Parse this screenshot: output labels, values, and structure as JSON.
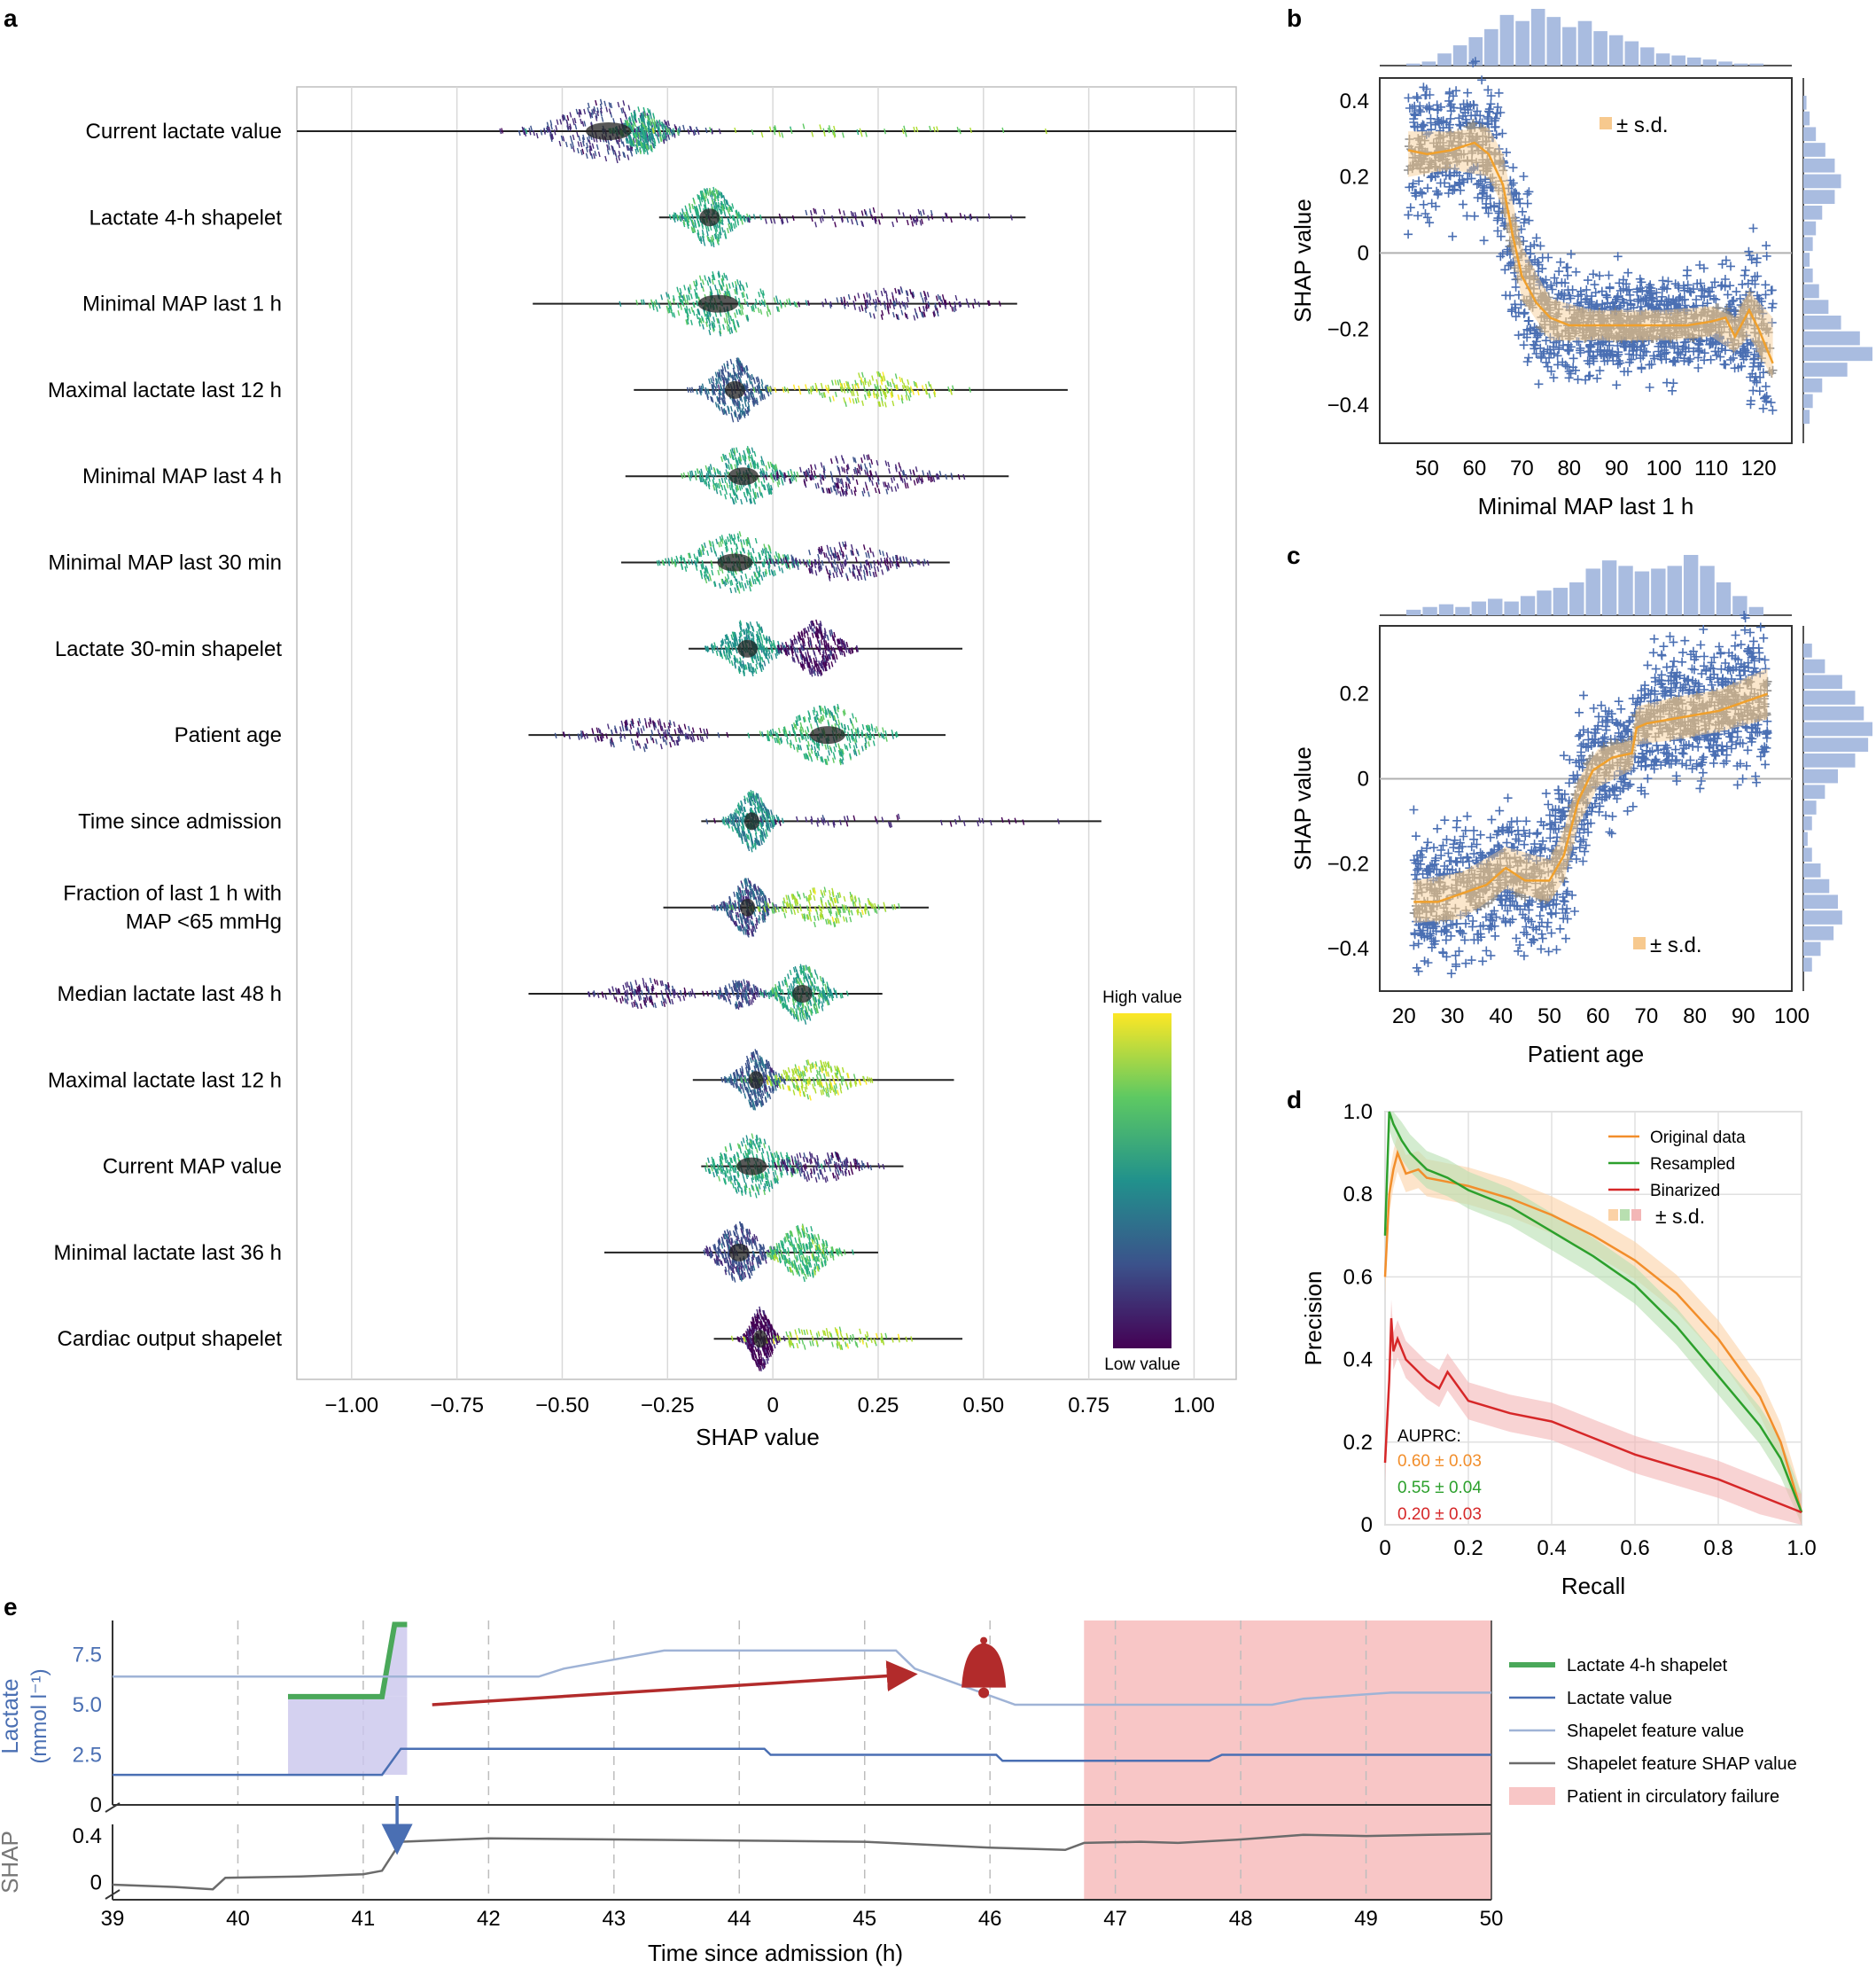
{
  "chart_data": [
    {
      "panel": "a",
      "type": "beeswarm",
      "title": "",
      "xlabel": "SHAP value",
      "ylabel": "",
      "xlim": [
        -1.13,
        1.1
      ],
      "xticks": [
        -1.0,
        -0.75,
        -0.5,
        -0.25,
        0,
        0.25,
        0.5,
        0.75,
        1.0
      ],
      "xtick_labels": [
        "−1.00",
        "−0.75",
        "−0.50",
        "−0.25",
        "0",
        "0.25",
        "0.50",
        "0.75",
        "1.00"
      ],
      "features": [
        {
          "name": "Current lactate value",
          "range": [
            -1.13,
            1.1
          ],
          "clusters": [
            {
              "c": -0.39,
              "w": 0.09,
              "h": 0.9,
              "col": 0.18
            },
            {
              "c": -0.31,
              "w": 0.03,
              "h": 0.7,
              "col": 0.6
            },
            {
              "c": 0.1,
              "w": 0.25,
              "h": 0.15,
              "col": 0.8
            }
          ]
        },
        {
          "name": "Lactate 4-h shapelet",
          "range": [
            -0.27,
            0.6
          ],
          "clusters": [
            {
              "c": -0.15,
              "w": 0.04,
              "h": 0.85,
              "col": 0.6
            },
            {
              "c": 0.2,
              "w": 0.18,
              "h": 0.25,
              "col": 0.1
            }
          ]
        },
        {
          "name": "Minimal MAP last 1 h",
          "range": [
            -0.57,
            0.58
          ],
          "clusters": [
            {
              "c": -0.13,
              "w": 0.08,
              "h": 0.9,
              "col": 0.65
            },
            {
              "c": 0.3,
              "w": 0.1,
              "h": 0.45,
              "col": 0.12
            }
          ]
        },
        {
          "name": "Maximal lactate last 12 h",
          "range": [
            -0.33,
            0.7
          ],
          "clusters": [
            {
              "c": -0.09,
              "w": 0.04,
              "h": 0.9,
              "col": 0.3
            },
            {
              "c": 0.23,
              "w": 0.1,
              "h": 0.5,
              "col": 0.85
            }
          ]
        },
        {
          "name": "Minimal MAP last 4 h",
          "range": [
            -0.35,
            0.56
          ],
          "clusters": [
            {
              "c": -0.07,
              "w": 0.06,
              "h": 0.85,
              "col": 0.6
            },
            {
              "c": 0.2,
              "w": 0.1,
              "h": 0.6,
              "col": 0.12
            }
          ]
        },
        {
          "name": "Minimal MAP last 30 min",
          "range": [
            -0.36,
            0.42
          ],
          "clusters": [
            {
              "c": -0.09,
              "w": 0.07,
              "h": 0.9,
              "col": 0.6
            },
            {
              "c": 0.17,
              "w": 0.08,
              "h": 0.55,
              "col": 0.12
            }
          ]
        },
        {
          "name": "Lactate 30-min shapelet",
          "range": [
            -0.2,
            0.45
          ],
          "clusters": [
            {
              "c": -0.06,
              "w": 0.04,
              "h": 0.85,
              "col": 0.55
            },
            {
              "c": 0.1,
              "w": 0.04,
              "h": 0.8,
              "col": 0.08
            }
          ]
        },
        {
          "name": "Patient age",
          "range": [
            -0.58,
            0.41
          ],
          "clusters": [
            {
              "c": -0.3,
              "w": 0.09,
              "h": 0.45,
              "col": 0.12
            },
            {
              "c": 0.13,
              "w": 0.07,
              "h": 0.9,
              "col": 0.65
            }
          ]
        },
        {
          "name": "Time since admission",
          "range": [
            -0.17,
            0.78
          ],
          "clusters": [
            {
              "c": -0.05,
              "w": 0.03,
              "h": 0.85,
              "col": 0.5
            },
            {
              "c": 0.25,
              "w": 0.2,
              "h": 0.15,
              "col": 0.1
            }
          ]
        },
        {
          "name": "Fraction of last 1 h with MAP <65 mmHg",
          "name_lines": [
            "Fraction of last 1 h with",
            "MAP <65 mmHg"
          ],
          "range": [
            -0.26,
            0.37
          ],
          "clusters": [
            {
              "c": -0.06,
              "w": 0.03,
              "h": 0.85,
              "col": 0.25
            },
            {
              "c": 0.12,
              "w": 0.08,
              "h": 0.55,
              "col": 0.82
            }
          ]
        },
        {
          "name": "Median lactate last 48 h",
          "range": [
            -0.58,
            0.26
          ],
          "clusters": [
            {
              "c": -0.3,
              "w": 0.06,
              "h": 0.4,
              "col": 0.12
            },
            {
              "c": -0.08,
              "w": 0.03,
              "h": 0.4,
              "col": 0.2
            },
            {
              "c": 0.07,
              "w": 0.04,
              "h": 0.85,
              "col": 0.6
            }
          ]
        },
        {
          "name": "Maximal lactate last 12 h",
          "name_dup": true,
          "range": [
            -0.19,
            0.43
          ],
          "clusters": [
            {
              "c": -0.04,
              "w": 0.03,
              "h": 0.85,
              "col": 0.3
            },
            {
              "c": 0.1,
              "w": 0.06,
              "h": 0.55,
              "col": 0.85
            }
          ]
        },
        {
          "name": "Current MAP value",
          "range": [
            -0.17,
            0.31
          ],
          "clusters": [
            {
              "c": -0.05,
              "w": 0.06,
              "h": 0.9,
              "col": 0.6
            },
            {
              "c": 0.11,
              "w": 0.06,
              "h": 0.45,
              "col": 0.15
            }
          ]
        },
        {
          "name": "Minimal lactate last 36 h",
          "range": [
            -0.4,
            0.25
          ],
          "clusters": [
            {
              "c": -0.08,
              "w": 0.04,
              "h": 0.85,
              "col": 0.2
            },
            {
              "c": 0.07,
              "w": 0.04,
              "h": 0.8,
              "col": 0.7
            }
          ]
        },
        {
          "name": "Cardiac output shapelet",
          "range": [
            -0.14,
            0.45
          ],
          "clusters": [
            {
              "c": -0.03,
              "w": 0.02,
              "h": 0.9,
              "col": 0.05
            },
            {
              "c": 0.13,
              "w": 0.1,
              "h": 0.3,
              "col": 0.85
            }
          ]
        }
      ],
      "colorbar": {
        "high_label": "High value",
        "low_label": "Low value",
        "stops": [
          "#440154",
          "#3b528b",
          "#21918c",
          "#5ec962",
          "#fde725"
        ]
      }
    },
    {
      "panel": "b",
      "type": "scatter",
      "xlabel": "Minimal MAP last 1 h",
      "ylabel": "SHAP value",
      "xlim": [
        40,
        127
      ],
      "ylim": [
        -0.5,
        0.46
      ],
      "xticks": [
        50,
        60,
        70,
        80,
        90,
        100,
        110,
        120
      ],
      "yticks": [
        -0.4,
        -0.2,
        0,
        0.2,
        0.4
      ],
      "ytick_labels": [
        "−0.4",
        "−0.2",
        "0",
        "0.2",
        "0.4"
      ],
      "legend": "± s.d.",
      "mean_line": {
        "x": [
          46,
          50,
          55,
          60,
          63,
          66,
          68,
          70,
          73,
          76,
          80,
          85,
          90,
          95,
          100,
          105,
          110,
          113,
          115,
          118,
          120,
          123
        ],
        "y": [
          0.27,
          0.26,
          0.27,
          0.29,
          0.26,
          0.18,
          0.05,
          -0.06,
          -0.13,
          -0.17,
          -0.19,
          -0.19,
          -0.19,
          -0.19,
          -0.19,
          -0.19,
          -0.18,
          -0.17,
          -0.22,
          -0.15,
          -0.2,
          -0.29
        ]
      },
      "sd_band": {
        "x": [
          46,
          55,
          63,
          66,
          70,
          76,
          85,
          100,
          110,
          115,
          118,
          123
        ],
        "upper": [
          0.32,
          0.32,
          0.33,
          0.26,
          0.02,
          -0.12,
          -0.15,
          -0.15,
          -0.14,
          -0.17,
          -0.1,
          -0.17
        ],
        "lower": [
          0.2,
          0.22,
          0.2,
          0.12,
          -0.12,
          -0.23,
          -0.23,
          -0.23,
          -0.22,
          -0.26,
          -0.22,
          -0.33
        ]
      },
      "hist_top": [
        1,
        2,
        6,
        10,
        14,
        18,
        25,
        22,
        28,
        24,
        19,
        22,
        17,
        15,
        12,
        9,
        6,
        5,
        4,
        3,
        2,
        1,
        1
      ],
      "hist_right": [
        1,
        2,
        4,
        7,
        10,
        12,
        10,
        6,
        4,
        3,
        2,
        3,
        5,
        8,
        12,
        18,
        22,
        14,
        6,
        3,
        2
      ]
    },
    {
      "panel": "c",
      "type": "scatter",
      "xlabel": "Patient age",
      "ylabel": "SHAP value",
      "xlim": [
        15,
        100
      ],
      "ylim": [
        -0.5,
        0.36
      ],
      "xticks": [
        20,
        30,
        40,
        50,
        60,
        70,
        80,
        90,
        100
      ],
      "yticks": [
        -0.4,
        -0.2,
        0,
        0.2
      ],
      "ytick_labels": [
        "−0.4",
        "−0.2",
        "0",
        "0.2"
      ],
      "legend": "± s.d.",
      "mean_line": {
        "x": [
          22,
          27,
          32,
          37,
          41,
          45,
          50,
          53,
          56,
          59,
          63,
          67,
          68,
          70,
          75,
          80,
          85,
          90,
          95
        ],
        "y": [
          -0.29,
          -0.29,
          -0.27,
          -0.25,
          -0.21,
          -0.24,
          -0.24,
          -0.18,
          -0.05,
          0.02,
          0.05,
          0.06,
          0.12,
          0.13,
          0.14,
          0.15,
          0.16,
          0.18,
          0.2
        ]
      },
      "sd_band": {
        "x": [
          22,
          32,
          41,
          50,
          53,
          56,
          60,
          67,
          68,
          75,
          85,
          95
        ],
        "upper": [
          -0.24,
          -0.22,
          -0.16,
          -0.19,
          -0.12,
          0.0,
          0.07,
          0.09,
          0.17,
          0.19,
          0.21,
          0.26
        ],
        "lower": [
          -0.34,
          -0.33,
          -0.26,
          -0.29,
          -0.24,
          -0.11,
          -0.02,
          0.02,
          0.08,
          0.09,
          0.11,
          0.14
        ]
      },
      "hist_top": [
        2,
        3,
        4,
        3,
        5,
        6,
        5,
        7,
        9,
        10,
        12,
        17,
        20,
        18,
        16,
        17,
        18,
        22,
        18,
        12,
        7,
        3
      ],
      "hist_right": [
        2,
        5,
        9,
        12,
        14,
        16,
        15,
        12,
        8,
        5,
        3,
        2,
        1,
        2,
        4,
        6,
        8,
        9,
        7,
        4,
        2
      ]
    },
    {
      "panel": "d",
      "type": "line",
      "xlabel": "Recall",
      "ylabel": "Precision",
      "xlim": [
        0,
        1
      ],
      "ylim": [
        0,
        1
      ],
      "xticks": [
        0,
        0.2,
        0.4,
        0.6,
        0.8,
        1.0
      ],
      "yticks": [
        0,
        0.2,
        0.4,
        0.6,
        0.8,
        1.0
      ],
      "tick_labels_x": [
        "0",
        "0.2",
        "0.4",
        "0.6",
        "0.8",
        "1.0"
      ],
      "tick_labels_y": [
        "0",
        "0.2",
        "0.4",
        "0.6",
        "0.8",
        "1.0"
      ],
      "series": [
        {
          "name": "Original data",
          "color": "#f28e2b",
          "x": [
            0,
            0.01,
            0.02,
            0.03,
            0.05,
            0.08,
            0.1,
            0.15,
            0.2,
            0.3,
            0.4,
            0.5,
            0.6,
            0.7,
            0.8,
            0.85,
            0.9,
            0.95,
            1.0
          ],
          "y": [
            0.6,
            0.8,
            0.86,
            0.9,
            0.85,
            0.86,
            0.84,
            0.83,
            0.82,
            0.79,
            0.75,
            0.7,
            0.64,
            0.56,
            0.45,
            0.38,
            0.31,
            0.2,
            0.03
          ]
        },
        {
          "name": "Resampled",
          "color": "#2ca02c",
          "x": [
            0,
            0.01,
            0.02,
            0.04,
            0.06,
            0.1,
            0.15,
            0.2,
            0.3,
            0.4,
            0.5,
            0.6,
            0.7,
            0.8,
            0.9,
            0.95,
            1.0
          ],
          "y": [
            0.7,
            1.0,
            0.97,
            0.93,
            0.9,
            0.86,
            0.84,
            0.81,
            0.77,
            0.71,
            0.65,
            0.58,
            0.48,
            0.36,
            0.24,
            0.16,
            0.03
          ]
        },
        {
          "name": "Binarized",
          "color": "#d62728",
          "x": [
            0,
            0.01,
            0.015,
            0.02,
            0.03,
            0.05,
            0.07,
            0.1,
            0.13,
            0.15,
            0.2,
            0.3,
            0.4,
            0.5,
            0.6,
            0.7,
            0.8,
            0.9,
            1.0
          ],
          "y": [
            0.15,
            0.35,
            0.5,
            0.42,
            0.45,
            0.4,
            0.38,
            0.35,
            0.33,
            0.37,
            0.3,
            0.27,
            0.25,
            0.21,
            0.17,
            0.14,
            0.11,
            0.07,
            0.03
          ]
        }
      ],
      "sd_label": "± s.d.",
      "annotation_title": "AUPRC:",
      "auprc": [
        {
          "text": "0.60 ± 0.03",
          "color": "#f28e2b"
        },
        {
          "text": "0.55 ± 0.04",
          "color": "#2ca02c"
        },
        {
          "text": "0.20 ± 0.03",
          "color": "#d62728"
        }
      ]
    },
    {
      "panel": "e",
      "type": "line",
      "xlabel": "Time since admission (h)",
      "ylabel_top": "Lactate (mmol l⁻¹)",
      "ylabel_top_lines": [
        "Lactate",
        "(mmol l⁻¹)"
      ],
      "ylabel_bottom": "SHAP",
      "xlim": [
        39,
        50
      ],
      "xticks": [
        39,
        40,
        41,
        42,
        43,
        44,
        45,
        46,
        47,
        48,
        49,
        50
      ],
      "yticks_top": [
        0,
        2.5,
        5.0,
        7.5
      ],
      "ytick_labels_top": [
        "0",
        "2.5",
        "5.0",
        "7.5"
      ],
      "yticks_bottom": [
        0,
        0.4
      ],
      "ytick_labels_bottom": [
        "0",
        "0.4"
      ],
      "failure_region": [
        46.75,
        50
      ],
      "shapelet_window": [
        40.4,
        41.35
      ],
      "series": [
        {
          "name": "Lactate 4-h shapelet",
          "color": "#4aa85a",
          "x": [
            40.4,
            41.15,
            41.25,
            41.35
          ],
          "y": [
            5.4,
            5.4,
            9.0,
            9.0
          ]
        },
        {
          "name": "Lactate value",
          "color": "#4a6fb3",
          "x": [
            39,
            41.15,
            41.3,
            44.2,
            44.25,
            46.05,
            46.1,
            47.75,
            47.85,
            50
          ],
          "y": [
            1.5,
            1.5,
            2.8,
            2.8,
            2.5,
            2.5,
            2.2,
            2.2,
            2.5,
            2.5
          ]
        },
        {
          "name": "Shapelet feature value",
          "color": "#9fb3d6",
          "x": [
            39,
            42.4,
            42.6,
            43.4,
            45.25,
            45.4,
            46.2,
            48.25,
            48.5,
            49.2,
            50
          ],
          "y": [
            6.4,
            6.4,
            6.8,
            7.7,
            7.7,
            6.8,
            5.0,
            5.0,
            5.3,
            5.6,
            5.6
          ]
        },
        {
          "name": "Shapelet feature SHAP value",
          "color": "#6b6b6b",
          "x": [
            39,
            39.5,
            39.8,
            39.9,
            40.5,
            41.0,
            41.15,
            41.3,
            42.0,
            43.0,
            44.0,
            45.0,
            46.0,
            46.6,
            46.75,
            47.2,
            47.5,
            48.0,
            48.5,
            49.0,
            49.5,
            50
          ],
          "y": [
            -0.02,
            -0.04,
            -0.06,
            0.04,
            0.05,
            0.07,
            0.1,
            0.35,
            0.38,
            0.37,
            0.36,
            0.35,
            0.3,
            0.28,
            0.34,
            0.35,
            0.34,
            0.37,
            0.41,
            0.4,
            0.41,
            0.42
          ]
        }
      ],
      "legend_extra": "Patient in circulatory failure"
    }
  ],
  "panel_labels": [
    "a",
    "b",
    "c",
    "d",
    "e"
  ]
}
